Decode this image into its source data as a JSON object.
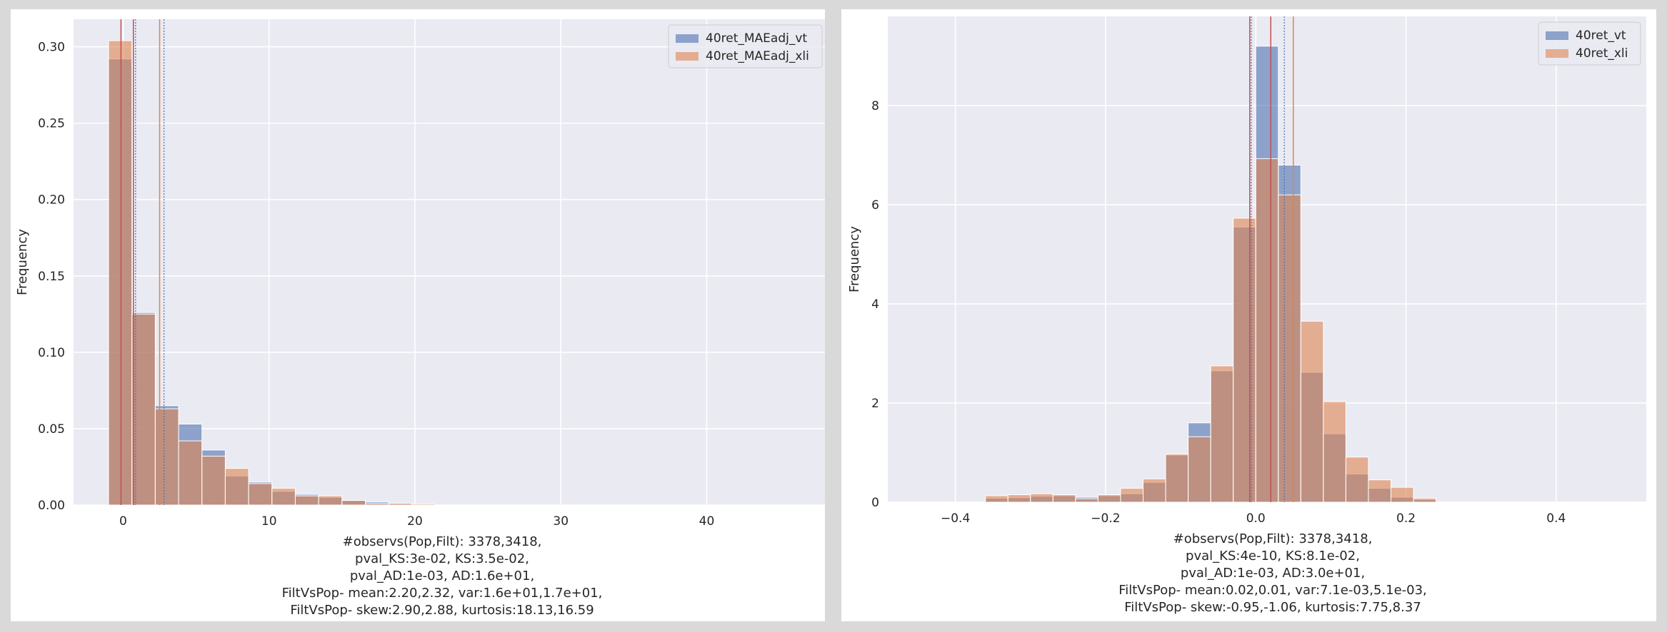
{
  "chart_data": [
    {
      "type": "bar",
      "subtype": "overlapping-histogram",
      "title": "",
      "xlabel": "",
      "ylabel": "Frequency",
      "xlim": [
        -3.4,
        48.3
      ],
      "ylim": [
        0,
        0.318
      ],
      "x_ticks": [
        0,
        10,
        20,
        30,
        40
      ],
      "y_ticks": [
        0.0,
        0.05,
        0.1,
        0.15,
        0.2,
        0.25,
        0.3
      ],
      "x_tick_labels": [
        "0",
        "10",
        "20",
        "30",
        "40"
      ],
      "y_tick_labels": [
        "0.00",
        "0.05",
        "0.10",
        "0.15",
        "0.20",
        "0.25",
        "0.30"
      ],
      "grid": true,
      "legend_position": "top-right",
      "bin_edges": [
        -1.0,
        0.6,
        2.2,
        3.8,
        5.4,
        7.0,
        8.6,
        10.2,
        11.8,
        13.4,
        15.0,
        16.6,
        18.2,
        19.8,
        21.4
      ],
      "series": [
        {
          "name": "40ret_MAEadj_vt",
          "color": "#4c72b0",
          "values": [
            0.292,
            0.126,
            0.065,
            0.053,
            0.036,
            0.019,
            0.015,
            0.009,
            0.007,
            0.005,
            0.003,
            0.002,
            0.0008,
            0.0005
          ]
        },
        {
          "name": "40ret_MAEadj_xli",
          "color": "#dd8452",
          "values": [
            0.304,
            0.125,
            0.063,
            0.042,
            0.032,
            0.024,
            0.014,
            0.011,
            0.006,
            0.006,
            0.003,
            0.001,
            0.0012,
            0.0008
          ]
        }
      ],
      "vlines": [
        {
          "x": -0.15,
          "color": "#c44e52",
          "style": "solid"
        },
        {
          "x": 0.7,
          "color": "#c44e52",
          "style": "solid"
        },
        {
          "x": 0.85,
          "color": "#4c72b0",
          "style": "dotted"
        },
        {
          "x": 2.5,
          "color": "#dd8452",
          "style": "solid"
        },
        {
          "x": 2.8,
          "color": "#4c72b0",
          "style": "dotted"
        }
      ],
      "annotation": [
        "#observs(Pop,Filt): 3378,3418,",
        "pval_KS:3e-02, KS:3.5e-02,",
        "pval_AD:1e-03, AD:1.6e+01,",
        "FiltVsPop- mean:2.20,2.32, var:1.6e+01,1.7e+01,",
        "FiltVsPop- skew:2.90,2.88, kurtosis:18.13,16.59"
      ]
    },
    {
      "type": "bar",
      "subtype": "overlapping-histogram",
      "title": "",
      "xlabel": "",
      "ylabel": "Frequency",
      "xlim": [
        -0.49,
        0.52
      ],
      "ylim": [
        0,
        9.8
      ],
      "x_ticks": [
        -0.4,
        -0.2,
        0.0,
        0.2,
        0.4
      ],
      "y_ticks": [
        0,
        2,
        4,
        6,
        8
      ],
      "x_tick_labels": [
        "−0.4",
        "−0.2",
        "0.0",
        "0.2",
        "0.4"
      ],
      "y_tick_labels": [
        "0",
        "2",
        "4",
        "6",
        "8"
      ],
      "grid": true,
      "legend_position": "top-right",
      "bin_edges": [
        -0.36,
        -0.33,
        -0.3,
        -0.27,
        -0.24,
        -0.21,
        -0.18,
        -0.15,
        -0.12,
        -0.09,
        -0.06,
        -0.03,
        0.0,
        0.03,
        0.06,
        0.09,
        0.12,
        0.15,
        0.18,
        0.21,
        0.24
      ],
      "series": [
        {
          "name": "40ret_vt",
          "color": "#4c72b0",
          "values": [
            0.08,
            0.09,
            0.12,
            0.13,
            0.1,
            0.13,
            0.17,
            0.4,
            0.95,
            1.6,
            2.65,
            5.55,
            9.2,
            6.8,
            2.62,
            1.38,
            0.57,
            0.28,
            0.1,
            0.05
          ]
        },
        {
          "name": "40ret_xli",
          "color": "#dd8452",
          "values": [
            0.13,
            0.15,
            0.17,
            0.15,
            0.07,
            0.15,
            0.28,
            0.47,
            0.97,
            1.32,
            2.75,
            5.73,
            6.93,
            6.2,
            3.65,
            2.03,
            0.91,
            0.45,
            0.3,
            0.08
          ]
        }
      ],
      "vlines": [
        {
          "x": -0.008,
          "color": "#c44e52",
          "style": "solid"
        },
        {
          "x": -0.006,
          "color": "#4c72b0",
          "style": "dotted"
        },
        {
          "x": 0.02,
          "color": "#c44e52",
          "style": "solid"
        },
        {
          "x": 0.038,
          "color": "#4c72b0",
          "style": "dotted"
        },
        {
          "x": 0.05,
          "color": "#dd8452",
          "style": "solid"
        }
      ],
      "annotation": [
        "#observs(Pop,Filt): 3378,3418,",
        "pval_KS:4e-10, KS:8.1e-02,",
        "pval_AD:1e-03, AD:3.0e+01,",
        "FiltVsPop- mean:0.02,0.01, var:7.1e-03,5.1e-03,",
        "FiltVsPop- skew:-0.95,-1.06, kurtosis:7.75,8.37"
      ]
    }
  ]
}
